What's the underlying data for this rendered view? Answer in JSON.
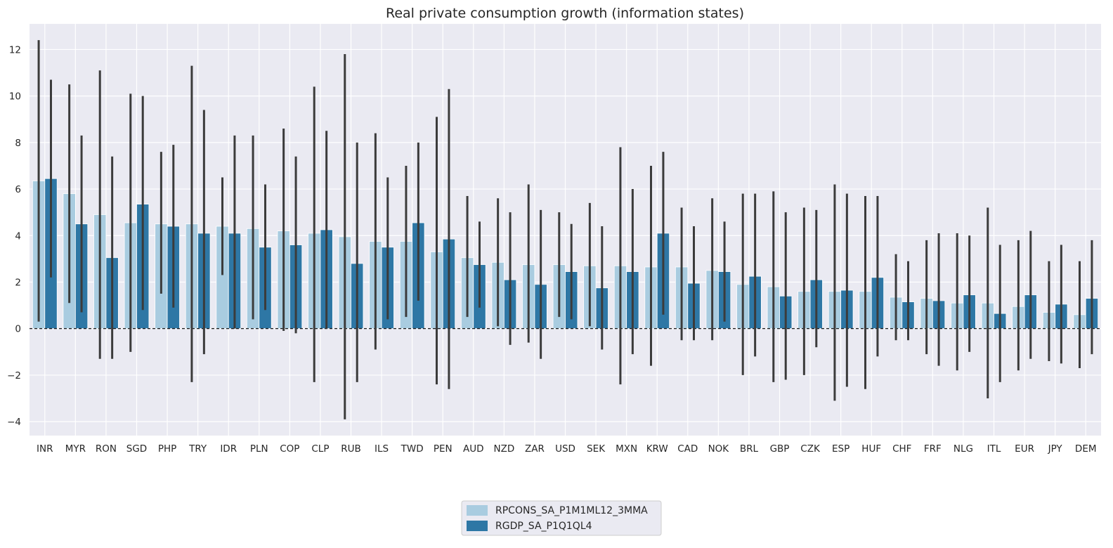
{
  "chart_data": {
    "type": "bar",
    "title": "Real private consumption growth (information states)",
    "xlabel": "",
    "ylabel": "",
    "ylim": [
      -4.6,
      13.1
    ],
    "yticks": [
      -4,
      -2,
      0,
      2,
      4,
      6,
      8,
      10,
      12
    ],
    "ytick_labels": [
      "−4",
      "−2",
      "0",
      "2",
      "4",
      "6",
      "8",
      "10",
      "12"
    ],
    "grid": true,
    "legend_position": "bottom-center",
    "categories": [
      "INR",
      "MYR",
      "RON",
      "SGD",
      "PHP",
      "TRY",
      "IDR",
      "PLN",
      "COP",
      "CLP",
      "RUB",
      "ILS",
      "TWD",
      "PEN",
      "AUD",
      "NZD",
      "ZAR",
      "USD",
      "SEK",
      "MXN",
      "KRW",
      "CAD",
      "NOK",
      "BRL",
      "GBP",
      "CZK",
      "ESP",
      "HUF",
      "CHF",
      "FRF",
      "NLG",
      "ITL",
      "EUR",
      "JPY",
      "DEM"
    ],
    "series": [
      {
        "name": "RPCONS_SA_P1M1ML12_3MMA",
        "color": "#a9cce0",
        "values": [
          6.35,
          5.8,
          4.9,
          4.55,
          4.5,
          4.5,
          4.4,
          4.3,
          4.2,
          4.1,
          3.95,
          3.75,
          3.75,
          3.3,
          3.05,
          2.85,
          2.75,
          2.75,
          2.7,
          2.7,
          2.65,
          2.65,
          2.5,
          1.9,
          1.8,
          1.6,
          1.6,
          1.6,
          1.35,
          1.3,
          1.1,
          1.1,
          0.95,
          0.7,
          0.6
        ],
        "ci_low": [
          0.3,
          1.1,
          -1.3,
          -1.0,
          1.5,
          -2.3,
          2.3,
          0.4,
          -0.1,
          -2.3,
          -3.9,
          -0.9,
          0.5,
          -2.4,
          0.5,
          0.1,
          -0.6,
          0.5,
          0.1,
          -2.4,
          -1.6,
          -0.5,
          -0.5,
          -2.0,
          -2.3,
          -2.0,
          -3.1,
          -2.6,
          -0.5,
          -1.1,
          -1.8,
          -3.0,
          -1.8,
          -1.4,
          -1.7
        ],
        "ci_high": [
          12.4,
          10.5,
          11.1,
          10.1,
          7.6,
          11.3,
          6.5,
          8.3,
          8.6,
          10.4,
          11.8,
          8.4,
          7.0,
          9.1,
          5.7,
          5.6,
          6.2,
          5.0,
          5.4,
          7.8,
          7.0,
          5.2,
          5.6,
          5.8,
          5.9,
          5.2,
          6.2,
          5.7,
          3.2,
          3.8,
          4.1,
          5.2,
          3.8,
          2.9,
          2.9
        ]
      },
      {
        "name": "RGDP_SA_P1Q1QL4",
        "color": "#2e77a5",
        "values": [
          6.45,
          4.5,
          3.05,
          5.35,
          4.4,
          4.1,
          4.1,
          3.5,
          3.6,
          4.25,
          2.8,
          3.5,
          4.55,
          3.85,
          2.75,
          2.1,
          1.9,
          2.45,
          1.75,
          2.45,
          4.1,
          1.95,
          2.45,
          2.25,
          1.4,
          2.1,
          1.65,
          2.2,
          1.15,
          1.2,
          1.45,
          0.65,
          1.45,
          1.05,
          1.3
        ],
        "ci_low": [
          2.2,
          0.7,
          -1.3,
          0.8,
          0.9,
          -1.1,
          0.0,
          0.8,
          -0.2,
          0.0,
          -2.3,
          0.4,
          1.2,
          -2.6,
          0.9,
          -0.7,
          -1.3,
          0.4,
          -0.9,
          -1.1,
          0.6,
          -0.5,
          0.3,
          -1.2,
          -2.2,
          -0.8,
          -2.5,
          -1.2,
          -0.5,
          -1.6,
          -1.0,
          -2.3,
          -1.3,
          -1.5,
          -1.1
        ],
        "ci_high": [
          10.7,
          8.3,
          7.4,
          10.0,
          7.9,
          9.4,
          8.3,
          6.2,
          7.4,
          8.5,
          8.0,
          6.5,
          8.0,
          10.3,
          4.6,
          5.0,
          5.1,
          4.5,
          4.4,
          6.0,
          7.6,
          4.4,
          4.6,
          5.8,
          5.0,
          5.1,
          5.8,
          5.7,
          2.9,
          4.1,
          4.0,
          3.6,
          4.2,
          3.6,
          3.8
        ]
      }
    ]
  }
}
